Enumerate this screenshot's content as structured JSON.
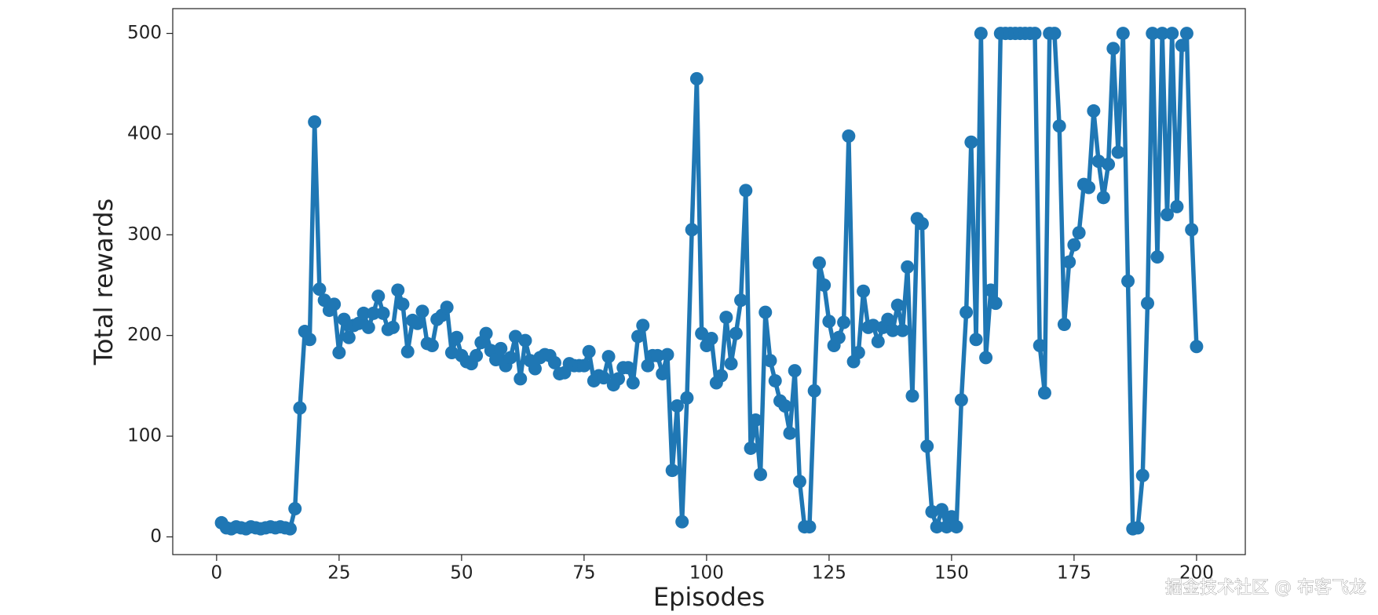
{
  "chart_data": {
    "type": "line",
    "xlabel": "Episodes",
    "ylabel": "Total rewards",
    "watermark": "掘金技术社区 @ 布客飞龙",
    "color": "#1f77b4",
    "xlim": [
      -8.95,
      209.95
    ],
    "ylim": [
      -17.6,
      524.6
    ],
    "xticks": [
      0,
      25,
      50,
      75,
      100,
      125,
      150,
      175,
      200
    ],
    "yticks": [
      0,
      100,
      200,
      300,
      400,
      500
    ],
    "x": [
      1,
      2,
      3,
      4,
      5,
      6,
      7,
      8,
      9,
      10,
      11,
      12,
      13,
      14,
      15,
      16,
      17,
      18,
      19,
      20,
      21,
      22,
      23,
      24,
      25,
      26,
      27,
      28,
      29,
      30,
      31,
      32,
      33,
      34,
      35,
      36,
      37,
      38,
      39,
      40,
      41,
      42,
      43,
      44,
      45,
      46,
      47,
      48,
      49,
      50,
      51,
      52,
      53,
      54,
      55,
      56,
      57,
      58,
      59,
      60,
      61,
      62,
      63,
      64,
      65,
      66,
      67,
      68,
      69,
      70,
      71,
      72,
      73,
      74,
      75,
      76,
      77,
      78,
      79,
      80,
      81,
      82,
      83,
      84,
      85,
      86,
      87,
      88,
      89,
      90,
      91,
      92,
      93,
      94,
      95,
      96,
      97,
      98,
      99,
      100,
      101,
      102,
      103,
      104,
      105,
      106,
      107,
      108,
      109,
      110,
      111,
      112,
      113,
      114,
      115,
      116,
      117,
      118,
      119,
      120,
      121,
      122,
      123,
      124,
      125,
      126,
      127,
      128,
      129,
      130,
      131,
      132,
      133,
      134,
      135,
      136,
      137,
      138,
      139,
      140,
      141,
      142,
      143,
      144,
      145,
      146,
      147,
      148,
      149,
      150,
      151,
      152,
      153,
      154,
      155,
      156,
      157,
      158,
      159,
      160,
      161,
      162,
      163,
      164,
      165,
      166,
      167,
      168,
      169,
      170,
      171,
      172,
      173,
      174,
      175,
      176,
      177,
      178,
      179,
      180,
      181,
      182,
      183,
      184,
      185,
      186,
      187,
      188,
      189,
      190,
      191,
      192,
      193,
      194,
      195,
      196,
      197,
      198,
      199,
      200
    ],
    "values": [
      14,
      9,
      8,
      10,
      9,
      8,
      10,
      9,
      8,
      9,
      10,
      9,
      10,
      9,
      8,
      28,
      128,
      204,
      196,
      412,
      246,
      235,
      225,
      231,
      183,
      216,
      198,
      210,
      212,
      222,
      208,
      222,
      239,
      222,
      206,
      208,
      245,
      231,
      184,
      215,
      212,
      224,
      192,
      190,
      216,
      220,
      228,
      183,
      198,
      180,
      174,
      172,
      180,
      193,
      202,
      185,
      176,
      187,
      170,
      178,
      199,
      157,
      195,
      175,
      167,
      178,
      181,
      180,
      173,
      162,
      163,
      172,
      170,
      170,
      170,
      184,
      155,
      160,
      158,
      179,
      151,
      157,
      168,
      168,
      153,
      199,
      210,
      170,
      180,
      180,
      162,
      181,
      66,
      130,
      15,
      138,
      305,
      455,
      202,
      190,
      197,
      153,
      160,
      218,
      172,
      202,
      235,
      344,
      88,
      116,
      62,
      223,
      175,
      155,
      135,
      130,
      103,
      165,
      55,
      10,
      10,
      145,
      272,
      250,
      214,
      190,
      198,
      213,
      398,
      174,
      183,
      244,
      208,
      210,
      194,
      208,
      216,
      205,
      230,
      205,
      268,
      140,
      316,
      311,
      90,
      25,
      10,
      27,
      10,
      20,
      10,
      136,
      223,
      392,
      196,
      500,
      178,
      245,
      232,
      500,
      500,
      500,
      500,
      500,
      500,
      500,
      500,
      190,
      143,
      500,
      500,
      408,
      211,
      273,
      290,
      302,
      350,
      347,
      423,
      373,
      337,
      370,
      485,
      382,
      500,
      254,
      8,
      9,
      61,
      232,
      500,
      278,
      500,
      320,
      500,
      328,
      488,
      500,
      305,
      189
    ]
  }
}
